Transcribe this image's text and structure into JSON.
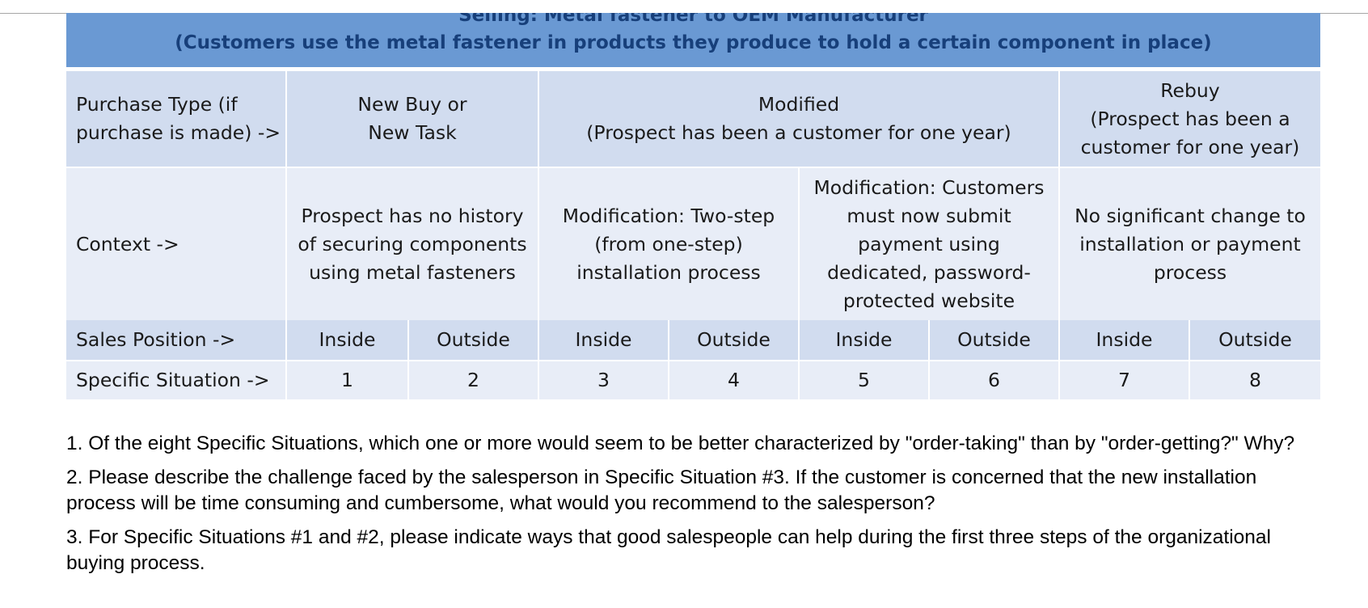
{
  "title": {
    "line1": "Selling: Metal fastener to OEM Manufacturer",
    "line2": "(Customers use the metal fastener in products they produce to hold a certain component in place)"
  },
  "rows": {
    "purchase_type": {
      "label": [
        "Purchase Type (if",
        "purchase is made) ->"
      ],
      "new_buy": [
        "New Buy or",
        "New Task"
      ],
      "modified": [
        "Modified",
        "(Prospect has been a customer for one year)"
      ],
      "rebuy": [
        "Rebuy",
        "(Prospect has been a",
        "customer for one year)"
      ]
    },
    "context": {
      "label": "Context ->",
      "new_buy": [
        "Prospect has no history",
        "of securing components",
        "using metal fasteners"
      ],
      "modified_a": [
        "Modification: Two-step",
        "(from one-step)",
        "installation process"
      ],
      "modified_b": [
        "Modification: Customers",
        "must now submit",
        "payment using",
        "dedicated, password-",
        "protected website"
      ],
      "rebuy": [
        "No significant change to",
        "installation or payment",
        "process"
      ]
    },
    "sales_position": {
      "label": "Sales Position ->",
      "values": [
        "Inside",
        "Outside",
        "Inside",
        "Outside",
        "Inside",
        "Outside",
        "Inside",
        "Outside"
      ]
    },
    "specific_situation": {
      "label": "Specific Situation ->",
      "values": [
        "1",
        "2",
        "3",
        "4",
        "5",
        "6",
        "7",
        "8"
      ]
    }
  },
  "questions": [
    "1. Of the eight Specific Situations, which one or more would seem to be better characterized by \"order-taking\" than by \"order-getting?\" Why?",
    "2. Please describe the challenge faced by the salesperson in Specific Situation #3. If the customer is concerned that the new installation process will be time consuming and cumbersome, what would you recommend to the salesperson?",
    "3. For Specific Situations #1 and #2, please indicate ways that good salespeople can help during the first three steps of the organizational buying process."
  ]
}
